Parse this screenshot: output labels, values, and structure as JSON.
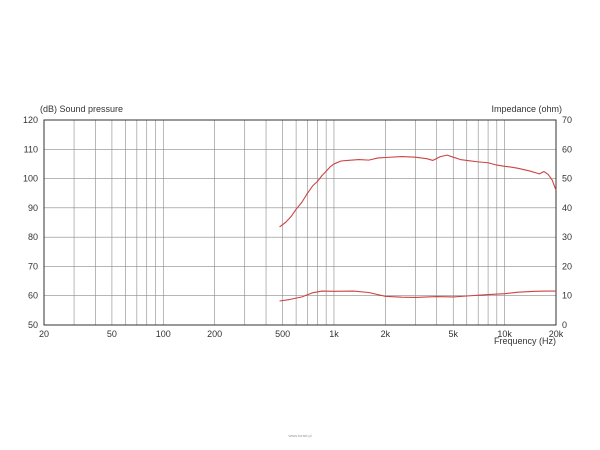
{
  "chart_data": {
    "type": "line",
    "title": "",
    "ylabel_left": "(dB)  Sound pressure",
    "ylabel_right": "Impedance  (ohm)",
    "xlabel": "Frequency  (Hz)",
    "x_scale": "log",
    "xlim": [
      20,
      20000
    ],
    "ylim_left": [
      50,
      120
    ],
    "ylim_right": [
      0,
      70
    ],
    "grid": true,
    "x_ticks": [
      {
        "value": 20,
        "label": "20"
      },
      {
        "value": 50,
        "label": "50"
      },
      {
        "value": 100,
        "label": "100"
      },
      {
        "value": 200,
        "label": "200"
      },
      {
        "value": 500,
        "label": "500"
      },
      {
        "value": 1000,
        "label": "1k"
      },
      {
        "value": 2000,
        "label": "2k"
      },
      {
        "value": 5000,
        "label": "5k"
      },
      {
        "value": 10000,
        "label": "10k"
      },
      {
        "value": 20000,
        "label": "20k"
      }
    ],
    "y_ticks_left": [
      "50",
      "60",
      "70",
      "80",
      "90",
      "100",
      "110",
      "120"
    ],
    "y_ticks_right": [
      "0",
      "10",
      "20",
      "30",
      "40",
      "50",
      "60",
      "70"
    ],
    "line_color": "#cc4444",
    "series": [
      {
        "axis": "left",
        "x": [
          480,
          520,
          560,
          600,
          650,
          700,
          750,
          800,
          850,
          900,
          950,
          1000,
          1100,
          1200,
          1400,
          1600,
          1800,
          2000,
          2500,
          3000,
          3500,
          3800,
          4200,
          4600,
          5000,
          5500,
          6000,
          7000,
          8000,
          9000,
          10000,
          11000,
          12000,
          14000,
          16000,
          17000,
          18000,
          19000,
          20000
        ],
        "values": [
          83.5,
          85,
          87,
          89.5,
          92,
          95,
          97.5,
          99,
          101,
          102.5,
          104,
          105,
          106,
          106.2,
          106.5,
          106.3,
          107,
          107.2,
          107.5,
          107.3,
          106.8,
          106.2,
          107.5,
          108,
          107.3,
          106.5,
          106.2,
          105.7,
          105.4,
          104.6,
          104.2,
          103.9,
          103.5,
          102.6,
          101.6,
          102.4,
          101.4,
          99.5,
          96
        ]
      },
      {
        "axis": "right",
        "x": [
          480,
          550,
          650,
          750,
          850,
          1000,
          1300,
          1600,
          2000,
          2500,
          3000,
          4000,
          5000,
          6000,
          8000,
          10000,
          12000,
          15000,
          18000,
          20000
        ],
        "values": [
          8.2,
          8.7,
          9.6,
          11,
          11.6,
          11.5,
          11.6,
          11.1,
          9.8,
          9.5,
          9.4,
          9.7,
          9.6,
          9.9,
          10.4,
          10.7,
          11.2,
          11.5,
          11.6,
          11.6
        ]
      }
    ]
  },
  "watermark": "www.tonsil.pl"
}
